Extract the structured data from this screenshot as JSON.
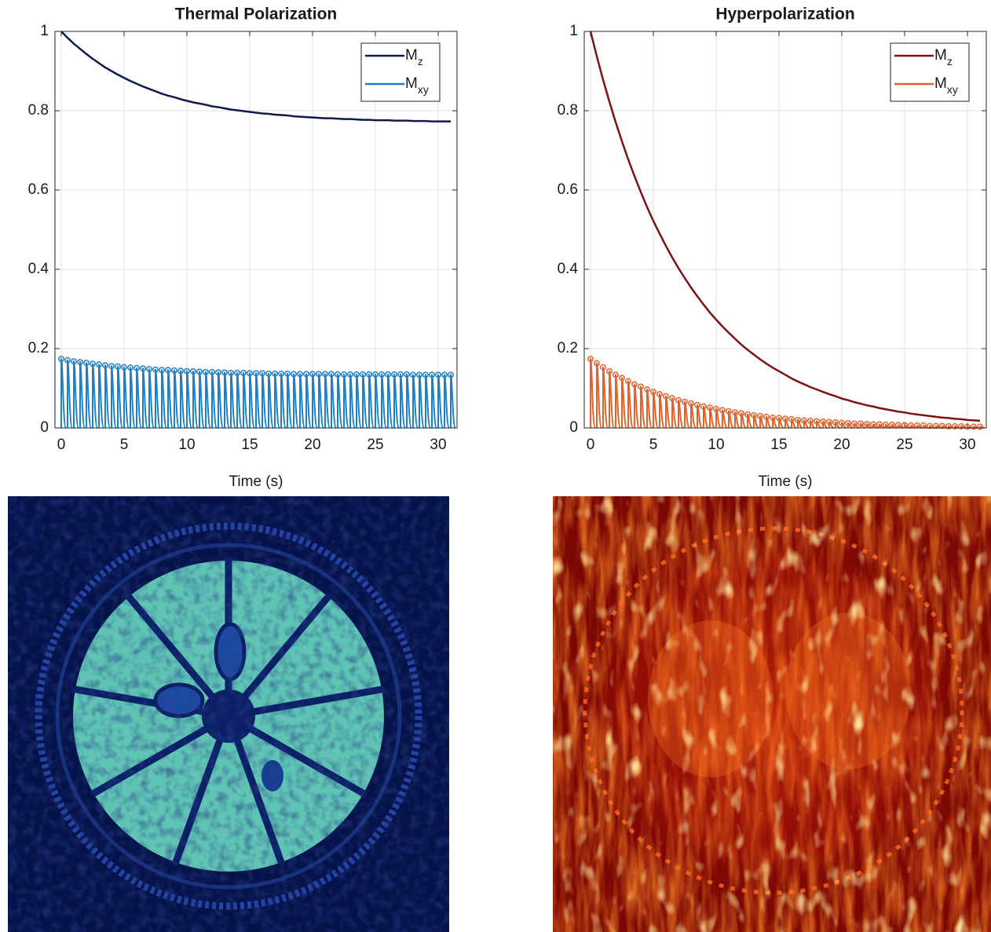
{
  "chart_data": [
    {
      "type": "line",
      "title": "Thermal Polarization",
      "xlabel": "Time (s)",
      "x": [
        0,
        0.5,
        1,
        1.5,
        2,
        2.5,
        3,
        3.5,
        4,
        4.5,
        5,
        5.5,
        6,
        6.5,
        7,
        7.5,
        8,
        8.5,
        9,
        9.5,
        10,
        10.5,
        11,
        11.5,
        12,
        12.5,
        13,
        13.5,
        14,
        14.5,
        15,
        15.5,
        16,
        16.5,
        17,
        17.5,
        18,
        18.5,
        19,
        19.5,
        20,
        20.5,
        21,
        21.5,
        22,
        22.5,
        23,
        23.5,
        24,
        24.5,
        25,
        25.5,
        26,
        26.5,
        27,
        27.5,
        28,
        28.5,
        29,
        29.5,
        30,
        30.5,
        31
      ],
      "xlim": [
        -0.5,
        31.5
      ],
      "xticks": [
        0,
        5,
        10,
        15,
        20,
        25,
        30
      ],
      "ylim": [
        0,
        1
      ],
      "yticks": [
        0,
        0.2,
        0.4,
        0.6,
        0.8,
        1
      ],
      "grid": true,
      "legend": "upper right",
      "series": [
        {
          "name": "Mz",
          "color": "#0e1a4f",
          "style": "line",
          "values": [
            1.0,
            0.984,
            0.969,
            0.956,
            0.943,
            0.931,
            0.92,
            0.909,
            0.9,
            0.891,
            0.883,
            0.875,
            0.868,
            0.861,
            0.855,
            0.849,
            0.843,
            0.838,
            0.834,
            0.829,
            0.825,
            0.821,
            0.818,
            0.815,
            0.811,
            0.809,
            0.806,
            0.803,
            0.801,
            0.799,
            0.797,
            0.795,
            0.793,
            0.792,
            0.79,
            0.789,
            0.788,
            0.786,
            0.785,
            0.784,
            0.783,
            0.782,
            0.781,
            0.781,
            0.78,
            0.779,
            0.779,
            0.778,
            0.777,
            0.777,
            0.776,
            0.776,
            0.776,
            0.775,
            0.775,
            0.775,
            0.774,
            0.774,
            0.774,
            0.773,
            0.773,
            0.773,
            0.773
          ]
        },
        {
          "name": "Mxy",
          "color": "#1f80c8",
          "style": "stem",
          "values": [
            0.174,
            0.171,
            0.168,
            0.166,
            0.164,
            0.162,
            0.16,
            0.158,
            0.156,
            0.155,
            0.153,
            0.152,
            0.151,
            0.15,
            0.148,
            0.147,
            0.146,
            0.146,
            0.145,
            0.144,
            0.143,
            0.143,
            0.142,
            0.141,
            0.141,
            0.14,
            0.14,
            0.139,
            0.139,
            0.139,
            0.138,
            0.138,
            0.138,
            0.137,
            0.137,
            0.137,
            0.137,
            0.136,
            0.136,
            0.136,
            0.136,
            0.136,
            0.136,
            0.136,
            0.135,
            0.135,
            0.135,
            0.135,
            0.135,
            0.135,
            0.135,
            0.135,
            0.135,
            0.135,
            0.135,
            0.135,
            0.134,
            0.134,
            0.134,
            0.134,
            0.134,
            0.134,
            0.134
          ]
        }
      ]
    },
    {
      "type": "line",
      "title": "Hyperpolarization",
      "xlabel": "Time (s)",
      "x": [
        0,
        0.5,
        1,
        1.5,
        2,
        2.5,
        3,
        3.5,
        4,
        4.5,
        5,
        5.5,
        6,
        6.5,
        7,
        7.5,
        8,
        8.5,
        9,
        9.5,
        10,
        10.5,
        11,
        11.5,
        12,
        12.5,
        13,
        13.5,
        14,
        14.5,
        15,
        15.5,
        16,
        16.5,
        17,
        17.5,
        18,
        18.5,
        19,
        19.5,
        20,
        20.5,
        21,
        21.5,
        22,
        22.5,
        23,
        23.5,
        24,
        24.5,
        25,
        25.5,
        26,
        26.5,
        27,
        27.5,
        28,
        28.5,
        29,
        29.5,
        30,
        30.5,
        31
      ],
      "xlim": [
        -0.5,
        31.5
      ],
      "xticks": [
        0,
        5,
        10,
        15,
        20,
        25,
        30
      ],
      "ylim": [
        0,
        1
      ],
      "yticks": [
        0,
        0.2,
        0.4,
        0.6,
        0.8,
        1
      ],
      "grid": true,
      "legend": "upper right",
      "series": [
        {
          "name": "Mz",
          "color": "#7d1212",
          "style": "line",
          "values": [
            1.0,
            0.937,
            0.878,
            0.823,
            0.771,
            0.723,
            0.677,
            0.635,
            0.595,
            0.557,
            0.522,
            0.49,
            0.459,
            0.43,
            0.403,
            0.378,
            0.354,
            0.332,
            0.311,
            0.291,
            0.273,
            0.256,
            0.24,
            0.225,
            0.21,
            0.197,
            0.185,
            0.173,
            0.162,
            0.152,
            0.143,
            0.134,
            0.125,
            0.117,
            0.11,
            0.103,
            0.097,
            0.091,
            0.085,
            0.08,
            0.074,
            0.07,
            0.065,
            0.061,
            0.057,
            0.054,
            0.05,
            0.047,
            0.044,
            0.041,
            0.039,
            0.036,
            0.034,
            0.032,
            0.03,
            0.028,
            0.026,
            0.025,
            0.023,
            0.022,
            0.02,
            0.019,
            0.018
          ]
        },
        {
          "name": "Mxy",
          "color": "#e2622b",
          "style": "stem",
          "values": [
            0.174,
            0.163,
            0.153,
            0.143,
            0.134,
            0.126,
            0.118,
            0.11,
            0.104,
            0.097,
            0.091,
            0.085,
            0.08,
            0.075,
            0.07,
            0.066,
            0.062,
            0.058,
            0.054,
            0.051,
            0.048,
            0.045,
            0.042,
            0.039,
            0.037,
            0.034,
            0.032,
            0.03,
            0.028,
            0.026,
            0.025,
            0.023,
            0.022,
            0.02,
            0.019,
            0.018,
            0.017,
            0.016,
            0.015,
            0.014,
            0.013,
            0.012,
            0.011,
            0.011,
            0.01,
            0.009,
            0.009,
            0.008,
            0.008,
            0.007,
            0.007,
            0.006,
            0.006,
            0.006,
            0.005,
            0.005,
            0.005,
            0.004,
            0.004,
            0.004,
            0.003,
            0.003,
            0.003
          ]
        }
      ]
    }
  ]
}
